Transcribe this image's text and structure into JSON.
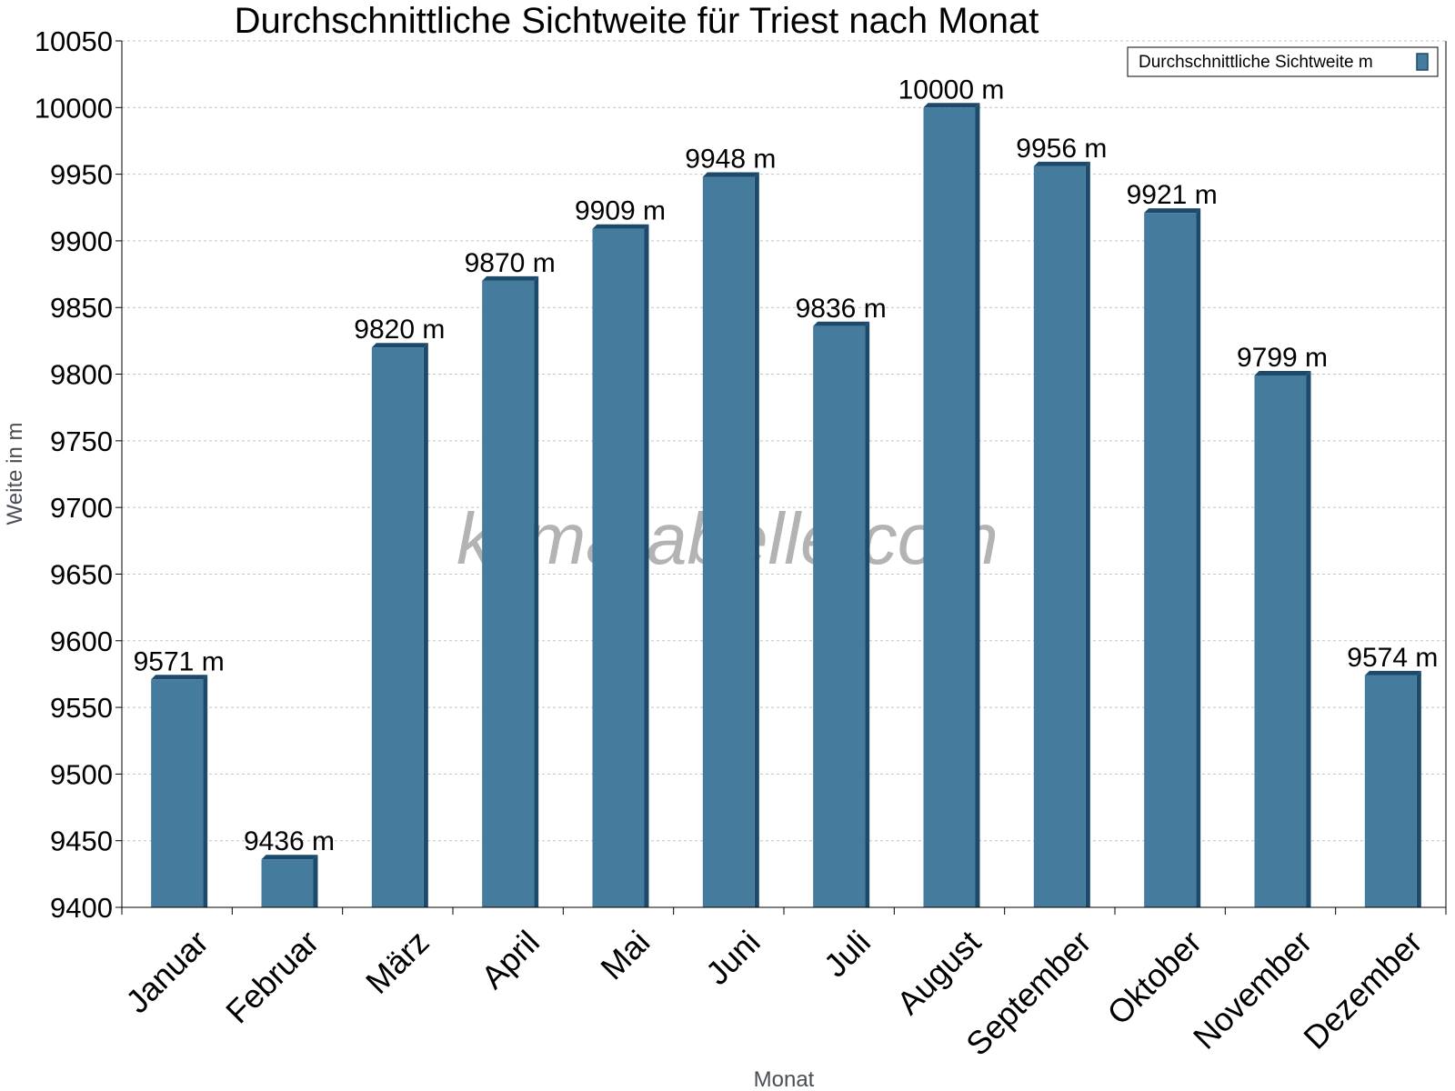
{
  "chart_data": {
    "type": "bar",
    "title": "Durchschnittliche Sichtweite für Triest nach Monat",
    "xlabel": "Monat",
    "ylabel": "Weite in m",
    "ylim": [
      9400,
      10050
    ],
    "yticks": [
      9400,
      9450,
      9500,
      9550,
      9600,
      9650,
      9700,
      9750,
      9800,
      9850,
      9900,
      9950,
      10000,
      10050
    ],
    "grid": true,
    "legend_position": "top-right",
    "categories": [
      "Januar",
      "Februar",
      "März",
      "April",
      "Mai",
      "Juni",
      "Juli",
      "August",
      "September",
      "Oktober",
      "November",
      "Dezember"
    ],
    "series": [
      {
        "name": "Durchschnittliche Sichtweite m",
        "values": [
          9571,
          9436,
          9820,
          9870,
          9909,
          9948,
          9836,
          10000,
          9956,
          9921,
          9799,
          9574
        ],
        "data_labels": [
          "9571 m",
          "9436 m",
          "9820 m",
          "9870 m",
          "9909 m",
          "9948 m",
          "9836 m",
          "10000 m",
          "9956 m",
          "9921 m",
          "9799 m",
          "9574 m"
        ],
        "color": "#457b9d",
        "edge_color": "#1d4a6b"
      }
    ]
  },
  "watermark": "klimatabelle.com"
}
